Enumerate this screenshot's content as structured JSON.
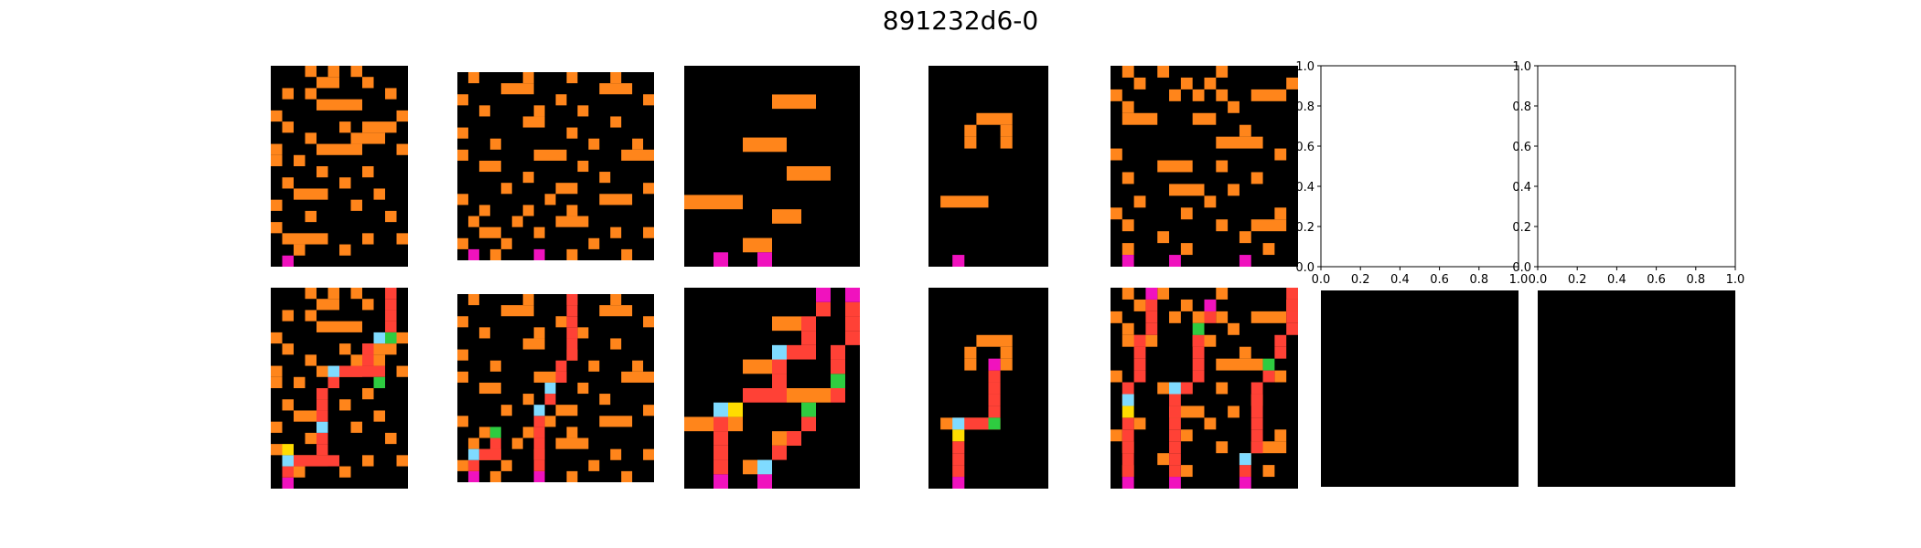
{
  "figure": {
    "title": "891232d6-0"
  },
  "colors": {
    "background": "#000000",
    "orange": "#ff851b",
    "magenta": "#f012be",
    "red": "#ff4136",
    "yellow": "#ffdc00",
    "cyan": "#7fdbff",
    "green": "#2ecc40"
  },
  "chart_data": {
    "type": "heatmap",
    "layout": "2 rows x 7 columns of pixel grids; row 1 = inputs, row 2 = outputs",
    "grids": [
      {
        "row": 1,
        "col": 1,
        "cols": 12,
        "rows": 18,
        "content": "scattered orange cells and horizontal bars; one magenta start cell in bottom row",
        "magenta_start_cols": [
          1
        ]
      },
      {
        "row": 1,
        "col": 2,
        "cols": 18,
        "rows": 17,
        "content": "scattered orange cells and horizontal bars; magenta start cells in bottom row",
        "magenta_start_cols": [
          1,
          7
        ]
      },
      {
        "row": 1,
        "col": 3,
        "cols": 12,
        "rows": 14,
        "content": "several orange horizontal bars; magenta start cells in bottom row",
        "magenta_start_cols": [
          3,
          5
        ]
      },
      {
        "row": 1,
        "col": 4,
        "cols": 10,
        "rows": 17,
        "content": "orange arch shape and one orange bar; magenta start cell in bottom row",
        "magenta_start_cols": [
          2
        ]
      },
      {
        "row": 1,
        "col": 5,
        "cols": 16,
        "rows": 17,
        "content": "scattered orange cells and bars; magenta start cells in bottom row",
        "magenta_start_cols": [
          1,
          5,
          11
        ]
      },
      {
        "row": 1,
        "col": 6,
        "type": "empty_axes",
        "xlim": [
          0,
          1
        ],
        "ylim": [
          0,
          1
        ],
        "xticks": [
          "0.0",
          "0.2",
          "0.4",
          "0.6",
          "0.8",
          "1.0"
        ],
        "yticks": [
          "0.0",
          "0.2",
          "0.4",
          "0.6",
          "0.8",
          "1.0"
        ]
      },
      {
        "row": 1,
        "col": 7,
        "type": "empty_axes",
        "xlim": [
          0,
          1
        ],
        "ylim": [
          0,
          1
        ],
        "xticks": [
          "0.0",
          "0.2",
          "0.4",
          "0.6",
          "0.8",
          "1.0"
        ],
        "yticks": [
          "0.0",
          "0.2",
          "0.4",
          "0.6",
          "0.8",
          "1.0"
        ]
      },
      {
        "row": 2,
        "col": 1,
        "cols": 12,
        "rows": 18,
        "content": "input grid with red staircase paths climbing from magenta start cell around orange bars, marked by yellow, cyan and green corner cells"
      },
      {
        "row": 2,
        "col": 2,
        "cols": 18,
        "rows": 17,
        "content": "input grid with red staircase paths from magenta start cells"
      },
      {
        "row": 2,
        "col": 3,
        "cols": 12,
        "rows": 14,
        "content": "input grid with red staircase paths from magenta start cells"
      },
      {
        "row": 2,
        "col": 4,
        "cols": 10,
        "rows": 17,
        "content": "input grid with a red path ending under the orange arch at a magenta cell"
      },
      {
        "row": 2,
        "col": 5,
        "cols": 16,
        "rows": 17,
        "content": "input grid with multiple red vertical paths from magenta start cells"
      },
      {
        "row": 2,
        "col": 6,
        "type": "blank_black_grid"
      },
      {
        "row": 2,
        "col": 7,
        "type": "blank_black_grid"
      }
    ]
  }
}
